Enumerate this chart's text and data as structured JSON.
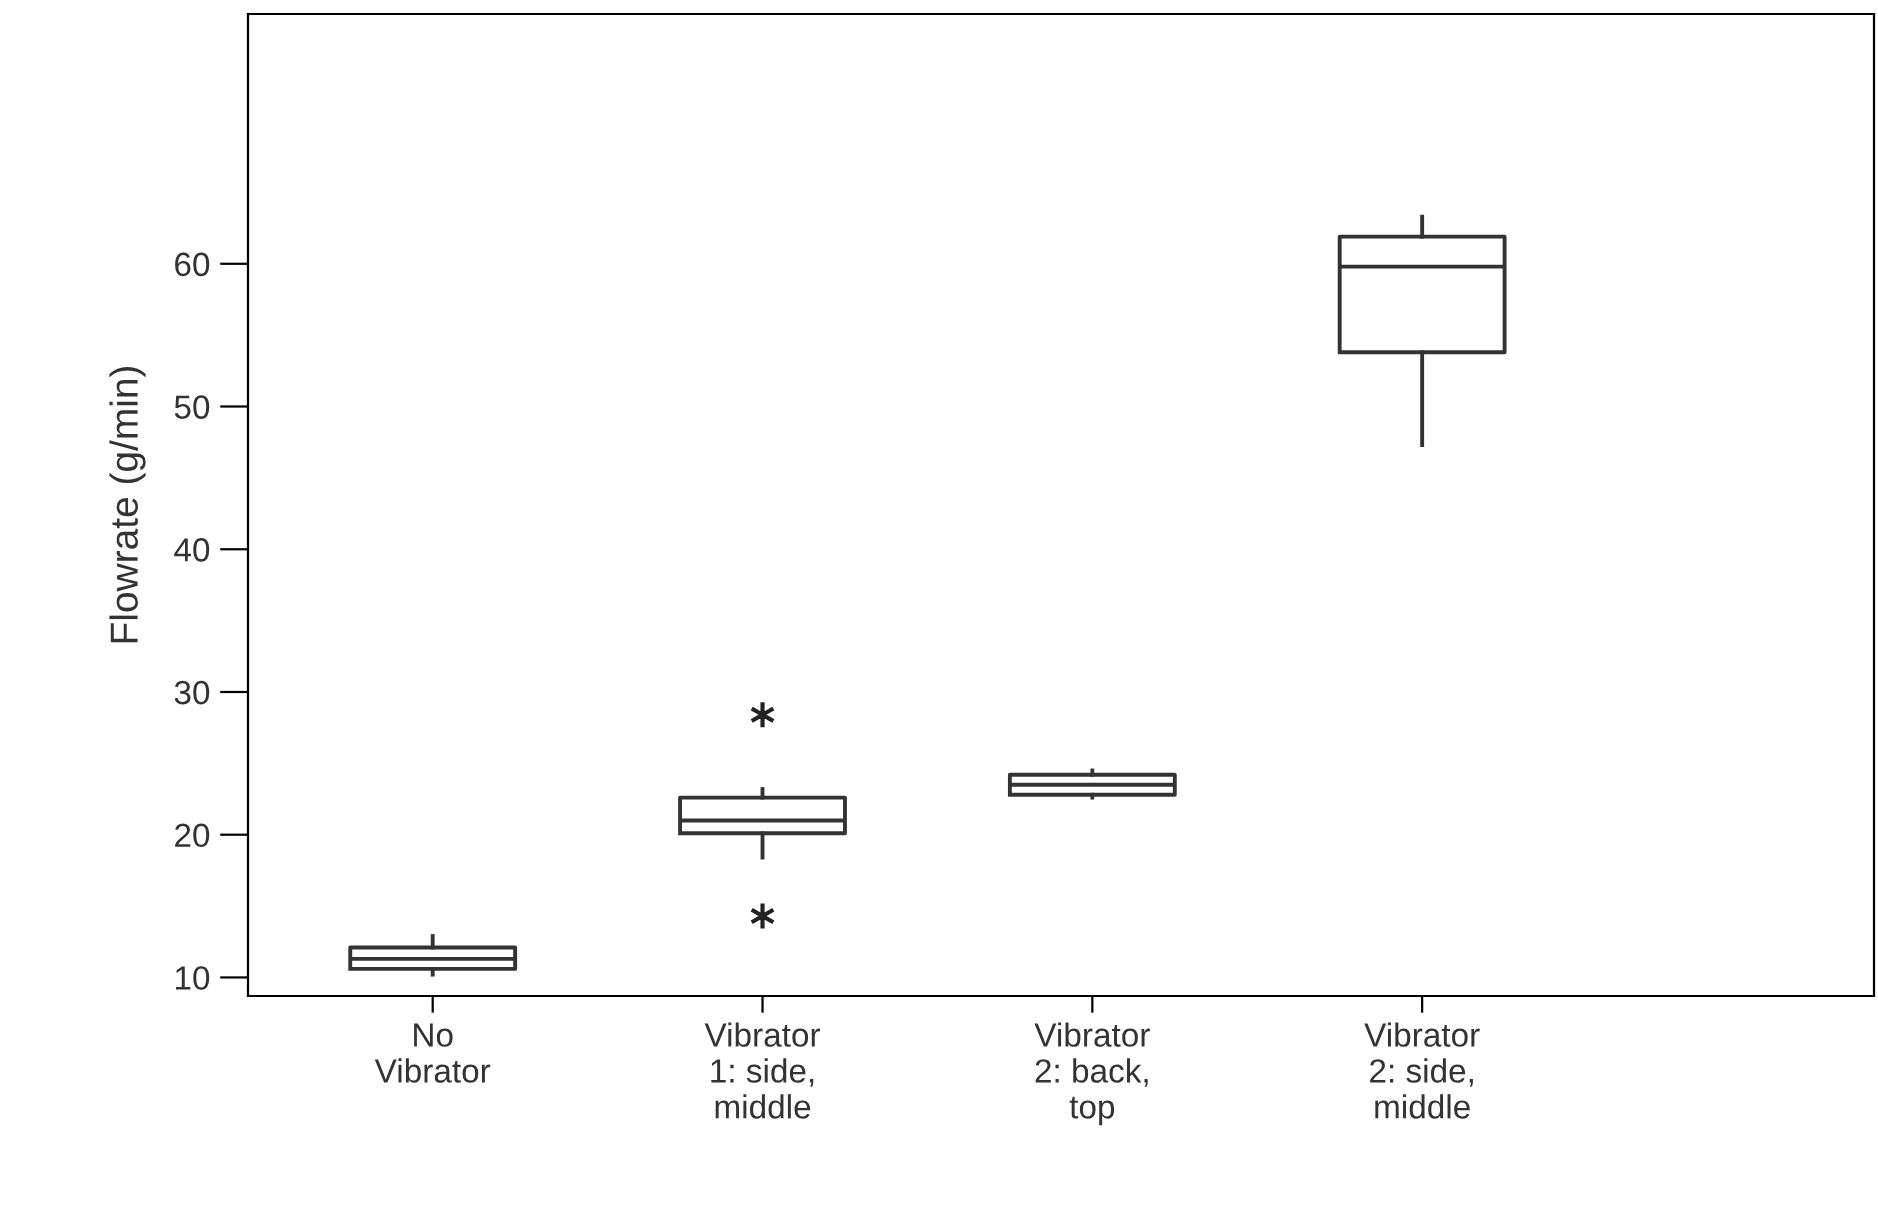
{
  "chart_data": {
    "type": "box",
    "ylabel": "Flowrate (g/min)",
    "categories": [
      "No\nVibrator",
      "Vibrator\n1: side,\nmiddle",
      "Vibrator\n2: back,\ntop",
      "Vibrator\n2: side,\nmiddle"
    ],
    "boxes": [
      {
        "low": 10.2,
        "q1": 10.6,
        "median": 11.3,
        "q3": 12.1,
        "high": 12.9
      },
      {
        "low": 18.4,
        "q1": 20.1,
        "median": 21.0,
        "q3": 22.6,
        "high": 23.2,
        "outliers": [
          28.4,
          14.3
        ]
      },
      {
        "low": 22.6,
        "q1": 22.8,
        "median": 23.5,
        "q3": 24.2,
        "high": 24.5
      },
      {
        "low": 47.3,
        "q1": 53.8,
        "median": 59.8,
        "q3": 61.9,
        "high": 63.3
      }
    ],
    "ylim": [
      8.7,
      77.5
    ],
    "yticks": [
      10,
      20,
      30,
      40,
      50,
      60
    ],
    "grid": false,
    "legend": false
  }
}
